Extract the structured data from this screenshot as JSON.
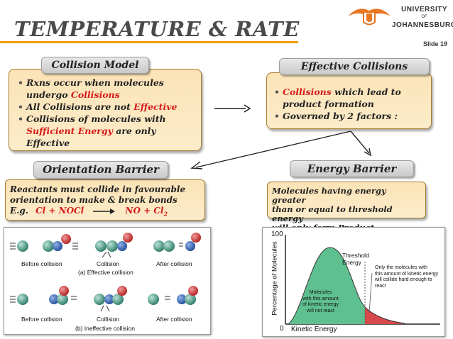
{
  "title": "TEMPERATURE & RATE",
  "slide_number": "Slide 19",
  "university": {
    "line1": "UNIVERSITY",
    "line2": "OF",
    "line3": "JOHANNESBURG"
  },
  "collision_model": {
    "header": "Collision Model",
    "b1_pre": "Rxns occur when molecules undergo ",
    "b1_red": "Collisions",
    "b2_pre": "All Collisions are not ",
    "b2_red": "Effective",
    "b3_pre": "Collisions of molecules with ",
    "b3_red": "Sufficient Energy",
    "b3_post": " are only Effective"
  },
  "effective_collisions": {
    "header": "Effective Collisions",
    "b1_red": "Collisions",
    "b1_post": " which lead to product formation",
    "b2": "Governed by 2  factors :"
  },
  "orientation_barrier": {
    "header": "Orientation Barrier",
    "line1": "Reactants must collide in  favourable",
    "line2": "orientation to make & break bonds",
    "eg": "E.g.",
    "reactants": "Cl  +  NOCl",
    "products": "NO  +  Cl",
    "products_sub": "2"
  },
  "energy_barrier": {
    "header": "Energy Barrier",
    "line1": "Molecules having energy greater",
    "line2": "than or equal to threshold energy",
    "line3": "will only form Product"
  },
  "collision_figure": {
    "before1": "Before collision",
    "collision1": "Collision",
    "after1": "After collision",
    "caption_a": "(a) Effective collision",
    "before2": "Before collision",
    "collision2": "Collision",
    "after2": "After collision",
    "caption_b": "(b) Ineffective collision"
  },
  "energy_chart": {
    "y_top": "100",
    "y_label": "Percentage of Molecules",
    "x_label": "Kinetic Energy",
    "origin": "0",
    "threshold_label": "Threshold Energy",
    "left_note_1": "Molecules",
    "left_note_2": "with this amount",
    "left_note_3": "of kinetic energy",
    "left_note_4": "will not react",
    "right_note_1": "Only the molecules with",
    "right_note_2": "this amount of kinetic energy",
    "right_note_3": "will collide hard enough to",
    "right_note_4": "react"
  },
  "colors": {
    "accent": "#f39c12",
    "red": "#d51b1b",
    "box_fill": "#fbe3b6",
    "curve_fill": "#5fc08f"
  }
}
